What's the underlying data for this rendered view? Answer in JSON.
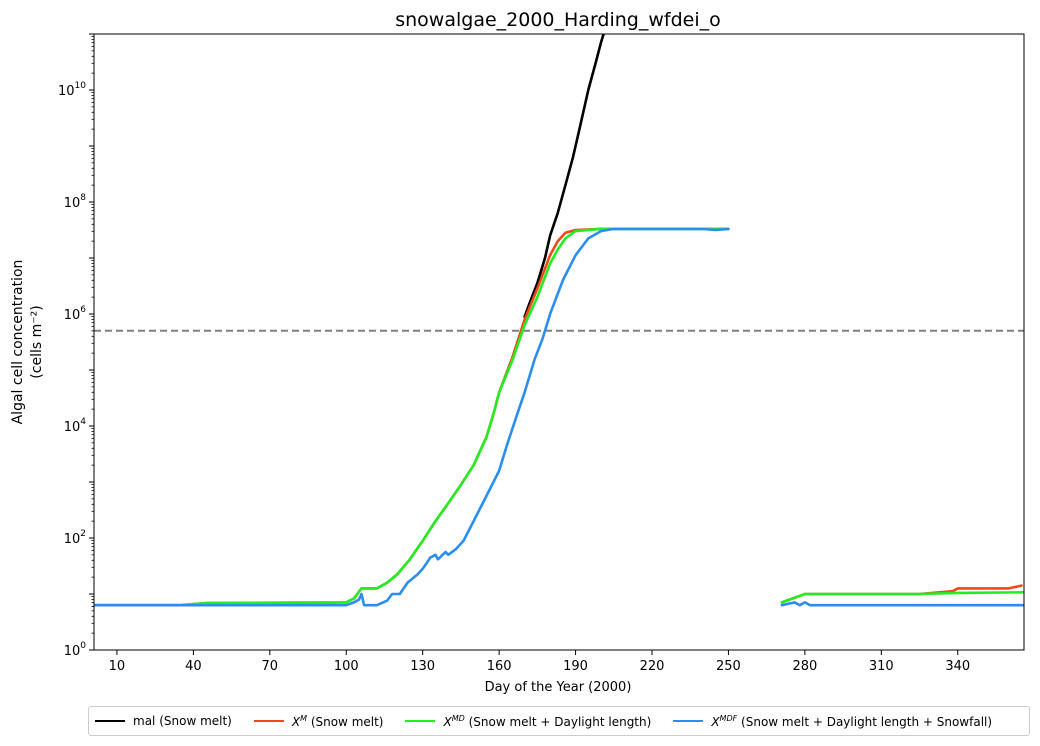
{
  "chart_data": {
    "type": "line",
    "title": "snowalgae_2000_Harding_wfdei_o",
    "xlabel": "Day of the Year (2000)",
    "ylabel_line1": "Algal cell concentration",
    "ylabel_line2": "(cells m⁻²)",
    "xlim": [
      1,
      366
    ],
    "ylim_log10": [
      0,
      11
    ],
    "yscale": "log",
    "xticks": [
      10,
      40,
      70,
      100,
      130,
      160,
      190,
      220,
      250,
      280,
      310,
      340
    ],
    "yticks_log10": [
      0,
      2,
      4,
      6,
      8,
      10
    ],
    "threshold_log10": 5.7,
    "threshold_style": "dashed grey",
    "legend_location": "below plot",
    "series": [
      {
        "key": "mal",
        "color": "#000000",
        "legend": {
          "main": "mal (Snow melt)",
          "sup": "",
          "rest": ""
        },
        "segments": [
          [
            [
              170,
              5.95
            ],
            [
              172,
              6.2
            ],
            [
              175,
              6.55
            ],
            [
              178,
              7.0
            ],
            [
              180,
              7.4
            ],
            [
              183,
              7.8
            ],
            [
              186,
              8.3
            ],
            [
              189,
              8.8
            ],
            [
              192,
              9.4
            ],
            [
              195,
              10.0
            ],
            [
              198,
              10.5
            ],
            [
              200,
              10.85
            ],
            [
              201,
              11.0
            ]
          ]
        ]
      },
      {
        "key": "XM",
        "color": "#ee4a1a",
        "legend": {
          "main": "X",
          "sup": "M",
          "rest": " (Snow melt)"
        },
        "segments": [
          [
            [
              1,
              0.8
            ],
            [
              35,
              0.8
            ],
            [
              45,
              0.84
            ],
            [
              100,
              0.85
            ],
            [
              103,
              0.92
            ],
            [
              106,
              1.1
            ],
            [
              112,
              1.1
            ],
            [
              116,
              1.2
            ],
            [
              120,
              1.35
            ],
            [
              125,
              1.62
            ],
            [
              130,
              1.95
            ],
            [
              135,
              2.3
            ],
            [
              140,
              2.62
            ],
            [
              145,
              2.95
            ],
            [
              150,
              3.3
            ],
            [
              155,
              3.8
            ],
            [
              158,
              4.25
            ],
            [
              160,
              4.6
            ],
            [
              165,
              5.2
            ],
            [
              170,
              5.9
            ],
            [
              175,
              6.45
            ],
            [
              180,
              7.05
            ],
            [
              183,
              7.3
            ],
            [
              186,
              7.45
            ],
            [
              190,
              7.5
            ],
            [
              200,
              7.52
            ],
            [
              245,
              7.52
            ],
            [
              250,
              7.52
            ]
          ],
          [
            [
              271,
              0.85
            ],
            [
              277,
              0.95
            ],
            [
              280,
              1.0
            ],
            [
              300,
              1.0
            ],
            [
              325,
              1.0
            ],
            [
              338,
              1.05
            ],
            [
              340,
              1.1
            ],
            [
              360,
              1.1
            ],
            [
              365,
              1.15
            ]
          ]
        ]
      },
      {
        "key": "XMD",
        "color": "#22ee22",
        "legend": {
          "main": "X",
          "sup": "MD",
          "rest": " (Snow melt + Daylight length)"
        },
        "segments": [
          [
            [
              1,
              0.8
            ],
            [
              35,
              0.8
            ],
            [
              45,
              0.84
            ],
            [
              100,
              0.85
            ],
            [
              103,
              0.92
            ],
            [
              106,
              1.1
            ],
            [
              112,
              1.1
            ],
            [
              116,
              1.2
            ],
            [
              120,
              1.35
            ],
            [
              125,
              1.62
            ],
            [
              130,
              1.95
            ],
            [
              135,
              2.3
            ],
            [
              140,
              2.62
            ],
            [
              145,
              2.95
            ],
            [
              150,
              3.3
            ],
            [
              155,
              3.8
            ],
            [
              158,
              4.25
            ],
            [
              160,
              4.6
            ],
            [
              165,
              5.15
            ],
            [
              170,
              5.8
            ],
            [
              175,
              6.3
            ],
            [
              180,
              6.9
            ],
            [
              183,
              7.15
            ],
            [
              186,
              7.35
            ],
            [
              190,
              7.48
            ],
            [
              200,
              7.52
            ],
            [
              245,
              7.52
            ],
            [
              250,
              7.52
            ]
          ],
          [
            [
              271,
              0.85
            ],
            [
              277,
              0.95
            ],
            [
              280,
              1.0
            ],
            [
              300,
              1.0
            ],
            [
              325,
              1.0
            ],
            [
              340,
              1.02
            ],
            [
              366,
              1.03
            ]
          ]
        ]
      },
      {
        "key": "XMDF",
        "color": "#2a8ef0",
        "legend": {
          "main": "X",
          "sup": "MDF",
          "rest": " (Snow melt + Daylight length + Snowfall)"
        },
        "segments": [
          [
            [
              1,
              0.8
            ],
            [
              100,
              0.8
            ],
            [
              103,
              0.85
            ],
            [
              105,
              0.9
            ],
            [
              106,
              1.0
            ],
            [
              107,
              0.8
            ],
            [
              112,
              0.8
            ],
            [
              116,
              0.88
            ],
            [
              118,
              1.0
            ],
            [
              121,
              1.0
            ],
            [
              124,
              1.2
            ],
            [
              128,
              1.35
            ],
            [
              130,
              1.45
            ],
            [
              133,
              1.65
            ],
            [
              135,
              1.7
            ],
            [
              136,
              1.62
            ],
            [
              139,
              1.75
            ],
            [
              140,
              1.7
            ],
            [
              143,
              1.8
            ],
            [
              146,
              1.95
            ],
            [
              150,
              2.3
            ],
            [
              155,
              2.75
            ],
            [
              160,
              3.2
            ],
            [
              163,
              3.65
            ],
            [
              167,
              4.2
            ],
            [
              170,
              4.6
            ],
            [
              174,
              5.2
            ],
            [
              177,
              5.55
            ],
            [
              180,
              6.0
            ],
            [
              185,
              6.6
            ],
            [
              190,
              7.05
            ],
            [
              195,
              7.35
            ],
            [
              200,
              7.48
            ],
            [
              205,
              7.52
            ],
            [
              240,
              7.52
            ],
            [
              245,
              7.5
            ],
            [
              250,
              7.52
            ]
          ],
          [
            [
              271,
              0.8
            ],
            [
              276,
              0.85
            ],
            [
              278,
              0.8
            ],
            [
              280,
              0.85
            ],
            [
              282,
              0.8
            ],
            [
              300,
              0.8
            ],
            [
              340,
              0.8
            ],
            [
              366,
              0.8
            ]
          ]
        ]
      }
    ]
  }
}
